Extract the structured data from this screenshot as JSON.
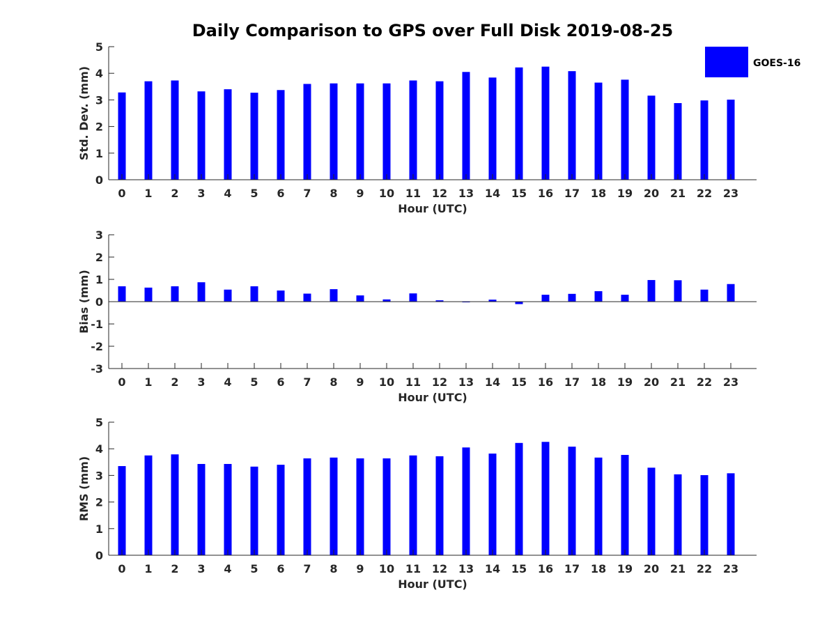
{
  "title": "Daily Comparison to GPS over Full Disk 2019-08-25",
  "colors": {
    "bar": "#0000ff",
    "axis": "#262626"
  },
  "legend": {
    "label": "GOES-16",
    "placement": "top-right"
  },
  "chart_data": [
    {
      "type": "bar",
      "ylabel": "Std. Dev. (mm)",
      "xlabel": "Hour (UTC)",
      "ylim": [
        0,
        5
      ],
      "yticks": [
        0,
        1,
        2,
        3,
        4,
        5
      ],
      "categories": [
        "0",
        "1",
        "2",
        "3",
        "4",
        "5",
        "6",
        "7",
        "8",
        "9",
        "10",
        "11",
        "12",
        "13",
        "14",
        "15",
        "16",
        "17",
        "18",
        "19",
        "20",
        "21",
        "22",
        "23"
      ],
      "series": [
        {
          "name": "GOES-16",
          "values": [
            3.28,
            3.7,
            3.73,
            3.32,
            3.4,
            3.27,
            3.37,
            3.6,
            3.62,
            3.62,
            3.62,
            3.73,
            3.7,
            4.05,
            3.84,
            4.22,
            4.25,
            4.08,
            3.65,
            3.76,
            3.16,
            2.88,
            2.98,
            3.01
          ]
        }
      ]
    },
    {
      "type": "bar",
      "ylabel": "Bias (mm)",
      "xlabel": "Hour (UTC)",
      "ylim": [
        -3,
        3
      ],
      "yticks": [
        -3,
        -2,
        -1,
        0,
        1,
        2,
        3
      ],
      "categories": [
        "0",
        "1",
        "2",
        "3",
        "4",
        "5",
        "6",
        "7",
        "8",
        "9",
        "10",
        "11",
        "12",
        "13",
        "14",
        "15",
        "16",
        "17",
        "18",
        "19",
        "20",
        "21",
        "22",
        "23"
      ],
      "series": [
        {
          "name": "GOES-16",
          "values": [
            0.69,
            0.63,
            0.69,
            0.87,
            0.54,
            0.69,
            0.5,
            0.36,
            0.56,
            0.28,
            0.1,
            0.37,
            0.06,
            -0.03,
            0.09,
            -0.11,
            0.31,
            0.35,
            0.47,
            0.31,
            0.97,
            0.96,
            0.54,
            0.79
          ]
        }
      ]
    },
    {
      "type": "bar",
      "ylabel": "RMS (mm)",
      "xlabel": "Hour (UTC)",
      "ylim": [
        0,
        5
      ],
      "yticks": [
        0,
        1,
        2,
        3,
        4,
        5
      ],
      "categories": [
        "0",
        "1",
        "2",
        "3",
        "4",
        "5",
        "6",
        "7",
        "8",
        "9",
        "10",
        "11",
        "12",
        "13",
        "14",
        "15",
        "16",
        "17",
        "18",
        "19",
        "20",
        "21",
        "22",
        "23"
      ],
      "series": [
        {
          "name": "GOES-16",
          "values": [
            3.35,
            3.75,
            3.79,
            3.43,
            3.43,
            3.33,
            3.4,
            3.64,
            3.67,
            3.64,
            3.64,
            3.75,
            3.72,
            4.05,
            3.82,
            4.22,
            4.26,
            4.08,
            3.67,
            3.77,
            3.29,
            3.04,
            3.01,
            3.08
          ]
        }
      ]
    }
  ]
}
